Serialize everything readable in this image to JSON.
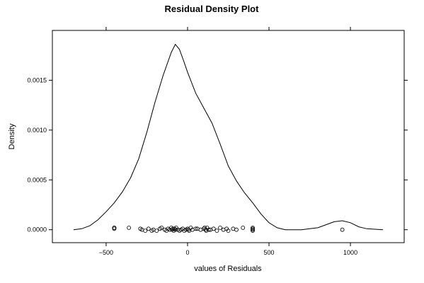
{
  "chart_data": {
    "type": "line",
    "title": "Residual Density Plot",
    "xlabel": "values of Residuals",
    "ylabel": "Density",
    "xlim": [
      -830,
      1330
    ],
    "ylim": [
      -0.00013,
      0.002
    ],
    "x_ticks": [
      {
        "value": -500,
        "label": "−500"
      },
      {
        "value": 0,
        "label": "0"
      },
      {
        "value": 500,
        "label": "500"
      },
      {
        "value": 1000,
        "label": "1000"
      }
    ],
    "y_ticks": [
      {
        "value": 0.0,
        "label": "0.0000"
      },
      {
        "value": 0.0005,
        "label": "0.0005"
      },
      {
        "value": 0.001,
        "label": "0.0010"
      },
      {
        "value": 0.0015,
        "label": "0.0015"
      }
    ],
    "grid": false,
    "series": [
      {
        "type": "line",
        "color": "#000000",
        "x": [
          -700,
          -650,
          -600,
          -550,
          -500,
          -450,
          -400,
          -350,
          -300,
          -250,
          -200,
          -150,
          -100,
          -75,
          -50,
          -25,
          0,
          50,
          100,
          150,
          200,
          250,
          300,
          350,
          400,
          450,
          500,
          550,
          600,
          650,
          700,
          750,
          800,
          850,
          900,
          950,
          1000,
          1050,
          1100,
          1200
        ],
        "y": [
          0.0,
          1e-05,
          4e-05,
          0.0001,
          0.00018,
          0.00027,
          0.00038,
          0.00052,
          0.00071,
          0.00098,
          0.00128,
          0.00155,
          0.00178,
          0.00186,
          0.00181,
          0.0017,
          0.00158,
          0.00137,
          0.00122,
          0.00107,
          0.00086,
          0.00064,
          0.00049,
          0.00037,
          0.00027,
          0.00016,
          7e-05,
          2e-05,
          0.0,
          0.0,
          0.0,
          1e-05,
          2e-05,
          5e-05,
          8e-05,
          9e-05,
          7e-05,
          3e-05,
          1e-05,
          0.0
        ]
      },
      {
        "type": "scatter",
        "marker": "open-circle",
        "color": "#000000",
        "x": [
          -450,
          -450,
          -450,
          -360,
          -290,
          -280,
          -260,
          -240,
          -220,
          -210,
          -190,
          -170,
          -160,
          -140,
          -130,
          -120,
          -110,
          -100,
          -95,
          -90,
          -85,
          -80,
          -75,
          -70,
          -60,
          -50,
          -40,
          -30,
          -20,
          -10,
          0,
          5,
          10,
          20,
          30,
          50,
          60,
          80,
          100,
          105,
          110,
          115,
          120,
          130,
          140,
          160,
          180,
          200,
          220,
          240,
          250,
          280,
          300,
          340,
          400,
          400,
          400,
          400,
          950
        ],
        "y": [
          2e-05,
          2e-05,
          1e-05,
          2e-05,
          1e-05,
          0.0,
          -1e-05,
          1e-05,
          -1e-05,
          0.0,
          -1e-05,
          1e-05,
          2e-05,
          0.0,
          -1e-05,
          1e-05,
          0.0,
          2e-05,
          0.0,
          1e-05,
          -1e-05,
          1e-05,
          0.0,
          2e-05,
          0.0,
          -1e-05,
          0.0,
          1e-05,
          -1e-05,
          0.0,
          1e-05,
          0.0,
          -1e-05,
          2e-05,
          0.0,
          1e-05,
          1e-05,
          0.0,
          1e-05,
          2e-05,
          0.0,
          -1e-05,
          2e-05,
          0.0,
          0.0,
          1e-05,
          -1e-05,
          2e-05,
          0.0,
          1e-05,
          -1e-05,
          1e-05,
          0.0,
          2e-05,
          2e-05,
          1e-05,
          0.0,
          -1e-05,
          0.0
        ]
      }
    ]
  }
}
